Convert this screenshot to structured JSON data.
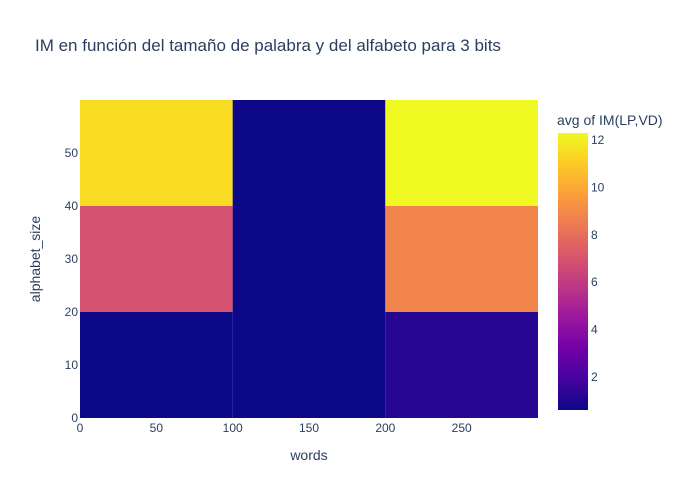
{
  "chart_data": {
    "type": "heatmap",
    "title": "IM en función del tamaño de palabra y del alfabeto para 3 bits",
    "xlabel": "words",
    "ylabel": "alphabet_size",
    "colorbar_title": "avg of IM(LP,VD)",
    "x_bins": [
      [
        0,
        100
      ],
      [
        100,
        200
      ],
      [
        200,
        300
      ]
    ],
    "y_bins": [
      [
        0,
        20
      ],
      [
        20,
        40
      ],
      [
        40,
        60
      ]
    ],
    "z": [
      [
        0.6,
        0.6,
        1.2
      ],
      [
        6.9,
        0.6,
        8.8
      ],
      [
        11.5,
        0.6,
        12.3
      ]
    ],
    "xlim": [
      0,
      300
    ],
    "ylim": [
      0,
      60
    ],
    "xticks": [
      0,
      50,
      100,
      150,
      200,
      250
    ],
    "yticks": [
      0,
      10,
      20,
      30,
      40,
      50
    ],
    "zlim": [
      0.6,
      12.3
    ],
    "colorbar_ticks": [
      2,
      4,
      6,
      8,
      10,
      12
    ],
    "colorscale": [
      "#0d0887",
      "#46039f",
      "#7201a8",
      "#9c179e",
      "#bd3786",
      "#d8576b",
      "#ed7953",
      "#fb9f3a",
      "#fdca26",
      "#f0f921"
    ]
  }
}
